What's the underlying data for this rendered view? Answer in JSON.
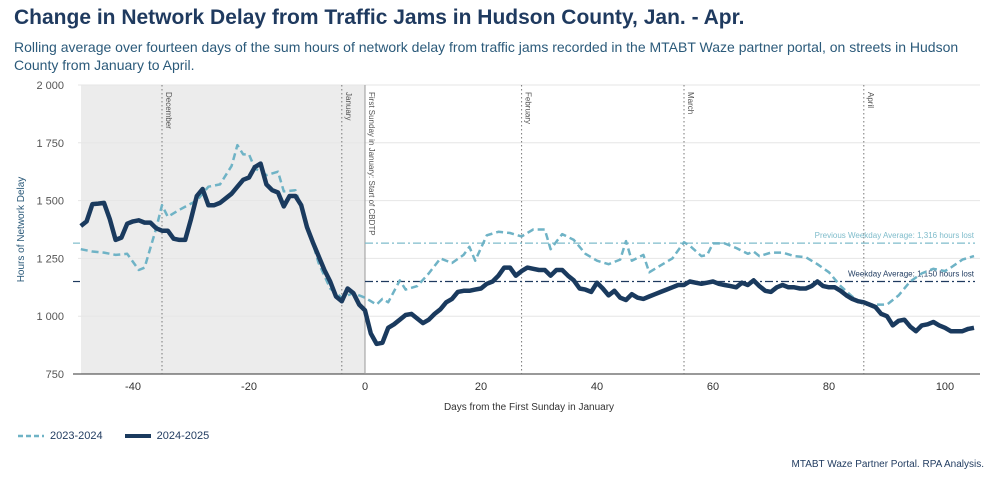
{
  "chart_data": {
    "type": "line",
    "title": "Change in Network Delay from Traffic Jams in Hudson County, Jan. - Apr.",
    "subtitle": "Rolling average over fourteen days of the sum hours of network delay from traffic jams recorded in the MTABT Waze partner portal, on streets in Hudson County from January to April.",
    "xlabel": "Days from the First Sunday in January",
    "ylabel": "Hours of Network Delay",
    "xlim": [
      -50,
      106
    ],
    "ylim": [
      750,
      2000
    ],
    "xticks": [
      -40,
      -20,
      0,
      20,
      40,
      60,
      80,
      100
    ],
    "xtick_labels": [
      "-40",
      "-20",
      "0",
      "20",
      "40",
      "60",
      "80",
      "100"
    ],
    "yticks": [
      750,
      1000,
      1250,
      1500,
      1750,
      2000
    ],
    "ytick_labels": [
      "750",
      "1 000",
      "1 250",
      "1 500",
      "1 750",
      "2 000"
    ],
    "shaded_range": [
      -50,
      0
    ],
    "vlines": [
      {
        "x": -35,
        "label": "December"
      },
      {
        "x": -4,
        "label": "January"
      },
      {
        "x": 0,
        "label": "First Sunday in January: Start of CBDTP"
      },
      {
        "x": 27,
        "label": "February"
      },
      {
        "x": 55,
        "label": "March"
      },
      {
        "x": 86,
        "label": "April"
      }
    ],
    "hlines": [
      {
        "y": 1316,
        "label": "Previous Weekday Average: 1,316 hours lost",
        "color": "#7fbccb"
      },
      {
        "y": 1150,
        "label": "Weekday Average: 1,150 hours lost",
        "color": "#1f3a5f"
      }
    ],
    "series": [
      {
        "name": "2023-2024",
        "color": "#6fb3c6",
        "style": "dashed",
        "x": [
          -49,
          -47,
          -45,
          -43,
          -41,
          -39,
          -38,
          -36,
          -35,
          -34,
          -32,
          -29,
          -27,
          -25,
          -23,
          -22,
          -21,
          -20,
          -19,
          -17,
          -15,
          -14,
          -12,
          -10,
          -8,
          -6,
          -4,
          -2,
          0,
          2,
          3,
          4,
          6,
          7,
          9,
          11,
          13,
          15,
          17,
          18,
          19,
          21,
          23,
          25,
          27,
          29,
          31,
          32,
          34,
          36,
          38,
          40,
          42,
          44,
          45,
          46,
          48,
          49,
          51,
          53,
          55,
          56,
          58,
          59,
          60,
          62,
          64,
          66,
          67,
          68,
          70,
          72,
          74,
          76,
          78,
          80,
          82,
          84,
          86,
          88,
          90,
          92,
          94,
          96,
          98,
          100,
          101,
          103,
          105
        ],
        "values": [
          1290,
          1280,
          1275,
          1265,
          1270,
          1200,
          1210,
          1380,
          1480,
          1430,
          1460,
          1500,
          1560,
          1570,
          1650,
          1740,
          1700,
          1700,
          1640,
          1610,
          1625,
          1540,
          1545,
          1400,
          1230,
          1120,
          1080,
          1100,
          1080,
          1050,
          1075,
          1060,
          1155,
          1115,
          1130,
          1185,
          1250,
          1230,
          1265,
          1300,
          1240,
          1350,
          1365,
          1360,
          1345,
          1375,
          1375,
          1290,
          1355,
          1330,
          1270,
          1240,
          1225,
          1245,
          1325,
          1240,
          1265,
          1190,
          1220,
          1250,
          1320,
          1305,
          1260,
          1265,
          1315,
          1315,
          1295,
          1270,
          1280,
          1260,
          1275,
          1275,
          1260,
          1255,
          1225,
          1190,
          1130,
          1085,
          1050,
          1050,
          1050,
          1090,
          1150,
          1185,
          1205,
          1195,
          1210,
          1245,
          1260
        ]
      },
      {
        "name": "2024-2025",
        "color": "#1a3a5e",
        "style": "solid",
        "x_start": -49,
        "values": [
          1390,
          1410,
          1485,
          1487,
          1490,
          1420,
          1330,
          1340,
          1400,
          1410,
          1415,
          1405,
          1405,
          1380,
          1370,
          1370,
          1335,
          1330,
          1330,
          1420,
          1520,
          1550,
          1480,
          1480,
          1490,
          1510,
          1530,
          1560,
          1590,
          1600,
          1645,
          1660,
          1570,
          1545,
          1535,
          1475,
          1520,
          1520,
          1480,
          1385,
          1320,
          1260,
          1200,
          1150,
          1085,
          1065,
          1120,
          1100,
          1050,
          1025,
          925,
          880,
          885,
          950,
          965,
          985,
          1005,
          1010,
          990,
          970,
          985,
          1010,
          1030,
          1060,
          1075,
          1105,
          1110,
          1110,
          1115,
          1120,
          1140,
          1150,
          1175,
          1210,
          1210,
          1175,
          1195,
          1210,
          1205,
          1200,
          1200,
          1175,
          1200,
          1200,
          1175,
          1155,
          1120,
          1115,
          1105,
          1145,
          1120,
          1090,
          1110,
          1080,
          1070,
          1095,
          1080,
          1075,
          1085,
          1095,
          1105,
          1115,
          1125,
          1135,
          1135,
          1150,
          1145,
          1140,
          1145,
          1150,
          1140,
          1135,
          1130,
          1125,
          1145,
          1135,
          1155,
          1130,
          1110,
          1105,
          1125,
          1135,
          1125,
          1125,
          1120,
          1120,
          1130,
          1150,
          1130,
          1125,
          1125,
          1110,
          1090,
          1075,
          1065,
          1060,
          1050,
          1040,
          1010,
          1000,
          960,
          980,
          985,
          955,
          935,
          960,
          965,
          975,
          960,
          950,
          935,
          935,
          935,
          945,
          950
        ]
      }
    ],
    "legend_position": "bottom-left",
    "source": "MTABT Waze Partner Portal. RPA Analysis."
  }
}
